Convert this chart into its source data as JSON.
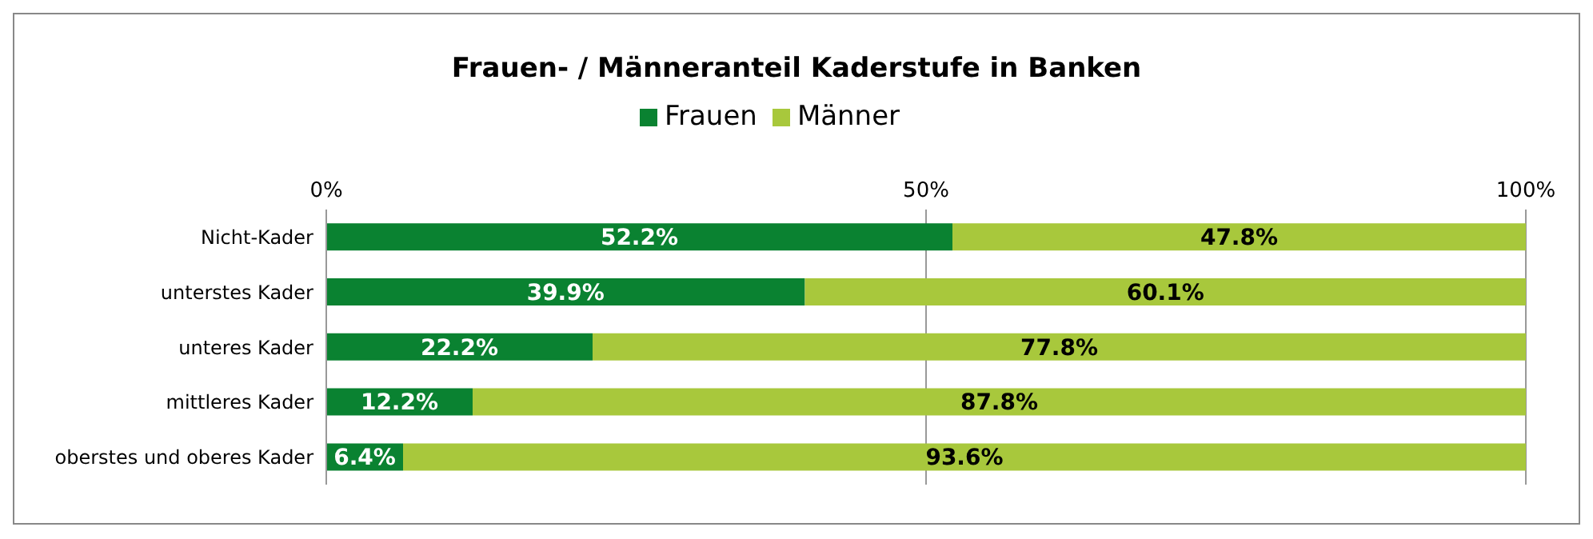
{
  "chart_data": {
    "type": "bar",
    "orientation": "horizontal",
    "stacked": true,
    "title": "Frauen- / Männeranteil Kaderstufe in Banken",
    "categories": [
      "Nicht-Kader",
      "unterstes Kader",
      "unteres Kader",
      "mittleres Kader",
      "oberstes und oberes Kader"
    ],
    "series": [
      {
        "name": "Frauen",
        "color": "#0a8231",
        "values": [
          52.2,
          39.9,
          22.2,
          12.2,
          6.4
        ],
        "value_labels": [
          "52.2%",
          "39.9%",
          "22.2%",
          "12.2%",
          "6.4%"
        ]
      },
      {
        "name": "Männer",
        "color": "#a8c83c",
        "values": [
          47.8,
          60.1,
          77.8,
          87.8,
          93.6
        ],
        "value_labels": [
          "47.8%",
          "60.1%",
          "77.8%",
          "87.8%",
          "93.6%"
        ]
      }
    ],
    "xlim": [
      0,
      100
    ],
    "xticks": [
      {
        "value": 0,
        "label": "0%"
      },
      {
        "value": 50,
        "label": "50%"
      },
      {
        "value": 100,
        "label": "100%"
      }
    ],
    "grid": "x",
    "legend": "top"
  }
}
